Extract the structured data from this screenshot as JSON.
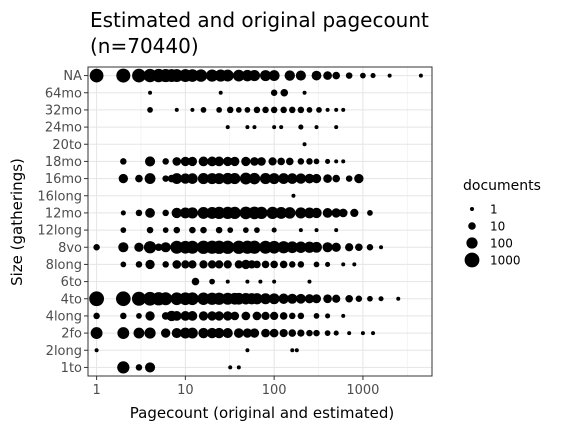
{
  "chart_data": {
    "type": "scatter",
    "title_line1": "Estimated and original pagecount",
    "title_line2": "(n=70440)",
    "xlabel": "Pagecount (original and estimated)",
    "ylabel": "Size (gatherings)",
    "x_scale": "log10",
    "xlim": [
      0.8,
      6000
    ],
    "x_ticks": [
      {
        "value": 1,
        "label": "1"
      },
      {
        "value": 10,
        "label": "10"
      },
      {
        "value": 100,
        "label": "100"
      },
      {
        "value": 1000,
        "label": "1000"
      }
    ],
    "categories": [
      "1to",
      "2long",
      "2fo",
      "4long",
      "4to",
      "6to",
      "8long",
      "8vo",
      "12long",
      "12mo",
      "16long",
      "16mo",
      "18mo",
      "20to",
      "24mo",
      "32mo",
      "64mo",
      "NA"
    ],
    "grid": true,
    "legend": {
      "title": "documents",
      "placement": "right",
      "items": [
        {
          "label": "1",
          "value": 1
        },
        {
          "label": "10",
          "value": 10
        },
        {
          "label": "100",
          "value": 100
        },
        {
          "label": "1000",
          "value": 1000
        }
      ]
    },
    "series": [
      {
        "category": "NA",
        "points": [
          [
            1,
            500
          ],
          [
            2,
            600
          ],
          [
            3,
            500
          ],
          [
            4,
            400
          ],
          [
            5,
            400
          ],
          [
            6,
            350
          ],
          [
            7,
            300
          ],
          [
            8,
            300
          ],
          [
            10,
            300
          ],
          [
            12,
            250
          ],
          [
            15,
            220
          ],
          [
            20,
            200
          ],
          [
            25,
            180
          ],
          [
            30,
            160
          ],
          [
            40,
            140
          ],
          [
            50,
            120
          ],
          [
            60,
            100
          ],
          [
            80,
            90
          ],
          [
            100,
            80
          ],
          [
            150,
            60
          ],
          [
            200,
            50
          ],
          [
            300,
            40
          ],
          [
            400,
            20
          ],
          [
            500,
            10
          ],
          [
            700,
            5
          ],
          [
            1000,
            3
          ],
          [
            1300,
            2
          ],
          [
            2000,
            1
          ],
          [
            4500,
            1
          ]
        ]
      },
      {
        "category": "64mo",
        "points": [
          [
            4,
            1
          ],
          [
            25,
            1
          ],
          [
            100,
            5
          ],
          [
            130,
            10
          ],
          [
            220,
            1
          ]
        ]
      },
      {
        "category": "32mo",
        "points": [
          [
            4,
            3
          ],
          [
            8,
            1
          ],
          [
            12,
            1
          ],
          [
            16,
            3
          ],
          [
            24,
            3
          ],
          [
            32,
            5
          ],
          [
            40,
            3
          ],
          [
            50,
            3
          ],
          [
            64,
            5
          ],
          [
            80,
            5
          ],
          [
            100,
            5
          ],
          [
            128,
            5
          ],
          [
            160,
            5
          ],
          [
            200,
            5
          ],
          [
            250,
            3
          ],
          [
            320,
            3
          ],
          [
            400,
            1
          ],
          [
            500,
            1
          ],
          [
            600,
            1
          ]
        ]
      },
      {
        "category": "24mo",
        "points": [
          [
            30,
            1
          ],
          [
            50,
            1
          ],
          [
            60,
            1
          ],
          [
            100,
            1
          ],
          [
            120,
            1
          ],
          [
            200,
            2
          ],
          [
            300,
            1
          ],
          [
            500,
            1
          ]
        ]
      },
      {
        "category": "20to",
        "points": [
          [
            220,
            1
          ]
        ]
      },
      {
        "category": "18mo",
        "points": [
          [
            2,
            5
          ],
          [
            4,
            50
          ],
          [
            6,
            5
          ],
          [
            8,
            20
          ],
          [
            10,
            30
          ],
          [
            12,
            30
          ],
          [
            16,
            40
          ],
          [
            20,
            40
          ],
          [
            24,
            40
          ],
          [
            30,
            30
          ],
          [
            36,
            30
          ],
          [
            48,
            30
          ],
          [
            60,
            20
          ],
          [
            72,
            20
          ],
          [
            96,
            15
          ],
          [
            120,
            10
          ],
          [
            150,
            10
          ],
          [
            200,
            5
          ],
          [
            250,
            5
          ],
          [
            300,
            3
          ],
          [
            400,
            2
          ],
          [
            500,
            1
          ],
          [
            600,
            1
          ]
        ]
      },
      {
        "category": "16long",
        "points": [
          [
            165,
            1
          ]
        ]
      },
      {
        "category": "16mo",
        "points": [
          [
            2,
            30
          ],
          [
            3,
            10
          ],
          [
            4,
            80
          ],
          [
            6,
            5
          ],
          [
            7,
            10
          ],
          [
            8,
            80
          ],
          [
            10,
            60
          ],
          [
            12,
            70
          ],
          [
            16,
            100
          ],
          [
            20,
            90
          ],
          [
            24,
            90
          ],
          [
            30,
            120
          ],
          [
            36,
            100
          ],
          [
            48,
            150
          ],
          [
            60,
            120
          ],
          [
            80,
            100
          ],
          [
            100,
            90
          ],
          [
            128,
            80
          ],
          [
            160,
            70
          ],
          [
            200,
            60
          ],
          [
            250,
            40
          ],
          [
            300,
            30
          ],
          [
            400,
            20
          ],
          [
            500,
            10
          ],
          [
            700,
            5
          ],
          [
            900,
            30
          ]
        ]
      },
      {
        "category": "12mo",
        "points": [
          [
            2,
            2
          ],
          [
            3,
            5
          ],
          [
            4,
            40
          ],
          [
            6,
            5
          ],
          [
            8,
            60
          ],
          [
            10,
            80
          ],
          [
            12,
            100
          ],
          [
            16,
            150
          ],
          [
            20,
            150
          ],
          [
            24,
            200
          ],
          [
            30,
            200
          ],
          [
            36,
            200
          ],
          [
            48,
            250
          ],
          [
            60,
            250
          ],
          [
            72,
            200
          ],
          [
            96,
            200
          ],
          [
            120,
            150
          ],
          [
            150,
            120
          ],
          [
            200,
            100
          ],
          [
            250,
            80
          ],
          [
            300,
            60
          ],
          [
            400,
            40
          ],
          [
            500,
            30
          ],
          [
            600,
            20
          ],
          [
            800,
            15
          ],
          [
            1200,
            3
          ]
        ]
      },
      {
        "category": "12long",
        "points": [
          [
            2,
            3
          ],
          [
            4,
            5
          ],
          [
            6,
            3
          ],
          [
            8,
            5
          ],
          [
            12,
            5
          ],
          [
            16,
            5
          ],
          [
            24,
            5
          ],
          [
            32,
            3
          ],
          [
            48,
            3
          ],
          [
            64,
            3
          ],
          [
            100,
            2
          ],
          [
            200,
            1
          ],
          [
            300,
            1
          ],
          [
            500,
            1
          ]
        ]
      },
      {
        "category": "8vo",
        "points": [
          [
            1,
            5
          ],
          [
            2,
            50
          ],
          [
            3,
            30
          ],
          [
            4,
            200
          ],
          [
            5,
            10
          ],
          [
            6,
            50
          ],
          [
            8,
            300
          ],
          [
            10,
            250
          ],
          [
            12,
            300
          ],
          [
            16,
            400
          ],
          [
            20,
            350
          ],
          [
            24,
            400
          ],
          [
            30,
            400
          ],
          [
            40,
            400
          ],
          [
            50,
            350
          ],
          [
            60,
            350
          ],
          [
            80,
            300
          ],
          [
            100,
            250
          ],
          [
            128,
            200
          ],
          [
            160,
            150
          ],
          [
            200,
            120
          ],
          [
            250,
            100
          ],
          [
            300,
            80
          ],
          [
            400,
            50
          ],
          [
            500,
            30
          ],
          [
            700,
            15
          ],
          [
            900,
            10
          ],
          [
            1200,
            5
          ],
          [
            1600,
            1
          ]
        ]
      },
      {
        "category": "8long",
        "points": [
          [
            2,
            3
          ],
          [
            3,
            5
          ],
          [
            4,
            30
          ],
          [
            6,
            5
          ],
          [
            8,
            20
          ],
          [
            10,
            15
          ],
          [
            12,
            15
          ],
          [
            16,
            15
          ],
          [
            20,
            15
          ],
          [
            24,
            15
          ],
          [
            30,
            15
          ],
          [
            40,
            15
          ],
          [
            48,
            30
          ],
          [
            56,
            15
          ],
          [
            64,
            10
          ],
          [
            80,
            10
          ],
          [
            100,
            10
          ],
          [
            128,
            10
          ],
          [
            160,
            5
          ],
          [
            200,
            5
          ],
          [
            300,
            3
          ],
          [
            400,
            2
          ],
          [
            600,
            1
          ],
          [
            800,
            1
          ]
        ]
      },
      {
        "category": "6to",
        "points": [
          [
            13,
            10
          ],
          [
            20,
            3
          ],
          [
            30,
            1
          ],
          [
            50,
            1
          ],
          [
            70,
            1
          ],
          [
            100,
            1
          ],
          [
            250,
            1
          ]
        ]
      },
      {
        "category": "4to",
        "points": [
          [
            1,
            1000
          ],
          [
            2,
            900
          ],
          [
            3,
            600
          ],
          [
            4,
            500
          ],
          [
            5,
            400
          ],
          [
            6,
            300
          ],
          [
            8,
            250
          ],
          [
            10,
            250
          ],
          [
            12,
            250
          ],
          [
            16,
            220
          ],
          [
            20,
            200
          ],
          [
            24,
            200
          ],
          [
            30,
            180
          ],
          [
            36,
            150
          ],
          [
            40,
            150
          ],
          [
            48,
            120
          ],
          [
            56,
            100
          ],
          [
            64,
            100
          ],
          [
            80,
            90
          ],
          [
            100,
            80
          ],
          [
            128,
            60
          ],
          [
            160,
            50
          ],
          [
            200,
            40
          ],
          [
            250,
            30
          ],
          [
            300,
            25
          ],
          [
            400,
            20
          ],
          [
            500,
            15
          ],
          [
            700,
            10
          ],
          [
            900,
            5
          ],
          [
            1200,
            3
          ],
          [
            1600,
            2
          ],
          [
            2500,
            1
          ]
        ]
      },
      {
        "category": "4long",
        "points": [
          [
            1,
            5
          ],
          [
            2,
            5
          ],
          [
            3,
            3
          ],
          [
            4,
            30
          ],
          [
            6,
            10
          ],
          [
            7,
            60
          ],
          [
            8,
            40
          ],
          [
            10,
            40
          ],
          [
            12,
            40
          ],
          [
            16,
            30
          ],
          [
            20,
            30
          ],
          [
            24,
            30
          ],
          [
            30,
            30
          ],
          [
            36,
            20
          ],
          [
            48,
            20
          ],
          [
            64,
            20
          ],
          [
            80,
            15
          ],
          [
            100,
            15
          ],
          [
            128,
            10
          ],
          [
            160,
            5
          ],
          [
            200,
            5
          ],
          [
            300,
            3
          ],
          [
            400,
            2
          ],
          [
            600,
            1
          ]
        ]
      },
      {
        "category": "2fo",
        "points": [
          [
            1,
            150
          ],
          [
            2,
            150
          ],
          [
            3,
            80
          ],
          [
            4,
            100
          ],
          [
            6,
            30
          ],
          [
            8,
            50
          ],
          [
            10,
            80
          ],
          [
            12,
            80
          ],
          [
            16,
            60
          ],
          [
            20,
            60
          ],
          [
            24,
            60
          ],
          [
            30,
            50
          ],
          [
            40,
            40
          ],
          [
            50,
            30
          ],
          [
            60,
            30
          ],
          [
            80,
            20
          ],
          [
            100,
            20
          ],
          [
            128,
            15
          ],
          [
            160,
            10
          ],
          [
            200,
            8
          ],
          [
            250,
            5
          ],
          [
            300,
            5
          ],
          [
            400,
            3
          ],
          [
            500,
            2
          ],
          [
            700,
            1
          ],
          [
            1000,
            1
          ],
          [
            1300,
            1
          ]
        ]
      },
      {
        "category": "2long",
        "points": [
          [
            1,
            1
          ],
          [
            50,
            1
          ],
          [
            160,
            1
          ],
          [
            180,
            1
          ]
        ]
      },
      {
        "category": "1to",
        "points": [
          [
            2,
            200
          ],
          [
            3,
            5
          ],
          [
            4,
            50
          ],
          [
            32,
            1
          ],
          [
            40,
            1
          ]
        ]
      }
    ]
  }
}
